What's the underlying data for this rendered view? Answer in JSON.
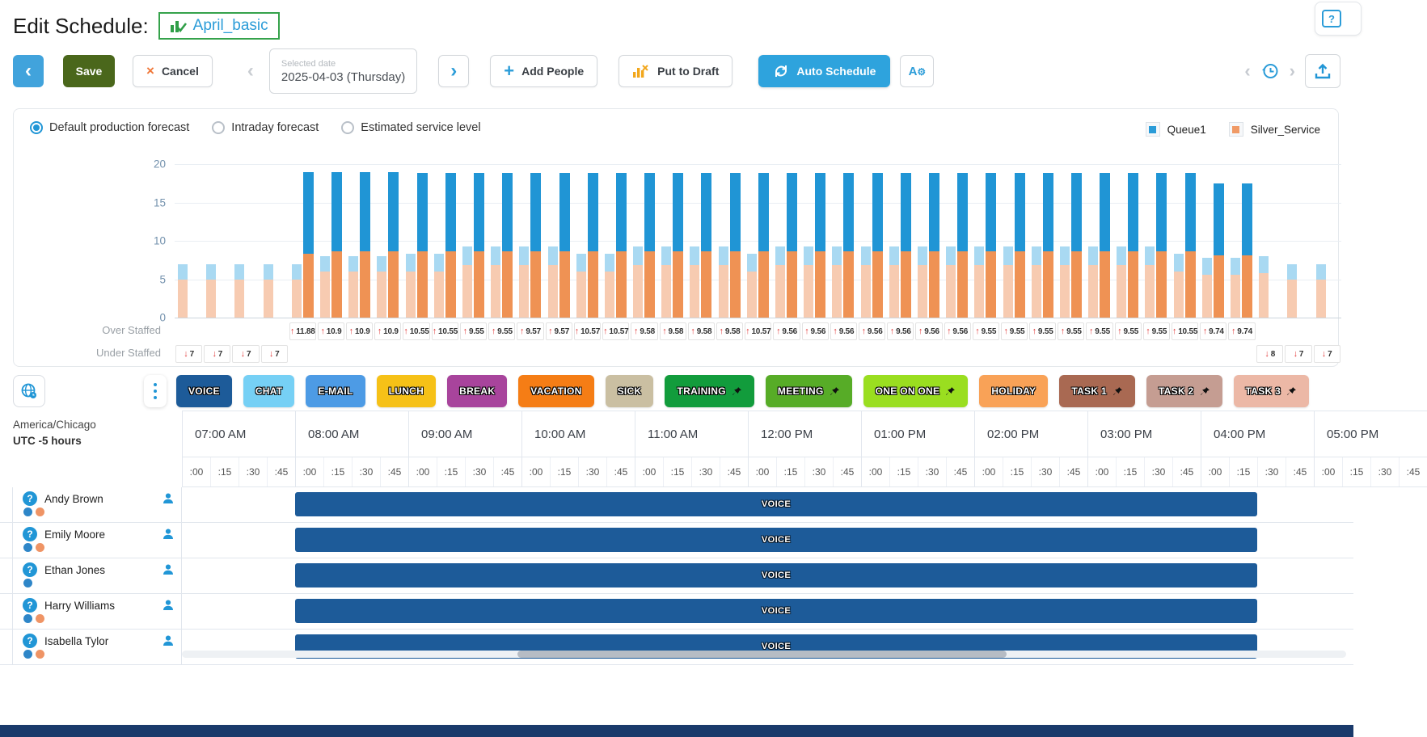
{
  "header": {
    "title": "Edit Schedule:",
    "schedule_name": "April_basic",
    "help_icon": "?"
  },
  "toolbar": {
    "save_label": "Save",
    "cancel_label": "Cancel",
    "selected_date_label": "Selected date",
    "selected_date_value": "2025-04-03 (Thursday)",
    "add_people_label": "Add People",
    "put_to_draft_label": "Put to Draft",
    "auto_schedule_label": "Auto Schedule",
    "icons": {
      "back": "‹",
      "next": "›",
      "prev_disabled": "‹",
      "cancel_x": "×",
      "add_plus": "+",
      "history_prev": "‹",
      "history_next": "›",
      "agear_letter": "A",
      "agear_gear": "⚙"
    }
  },
  "forecast_panel": {
    "radios": [
      {
        "label": "Default production forecast",
        "selected": true
      },
      {
        "label": "Intraday forecast",
        "selected": false
      },
      {
        "label": "Estimated service level",
        "selected": false
      }
    ],
    "legend": [
      {
        "name": "Queue1",
        "color": "#2b9cd8"
      },
      {
        "name": "Silver_Service",
        "color": "#f09a66"
      }
    ],
    "over_staffed_label": "Over Staffed",
    "under_staffed_label": "Under Staffed"
  },
  "chart_data": {
    "type": "bar",
    "mode": "grouped-stacked: pale pair = forecast (Silver_Service bottom, Queue1 top), dark pair = scheduled",
    "interval_minutes": 15,
    "y_ticks": [
      0,
      5,
      10,
      15,
      20
    ],
    "ylim": [
      0,
      20
    ],
    "legend_position": "top-right",
    "series_colors": {
      "forecast_queue": "#a9d9f2",
      "forecast_silver": "#f7cbb1",
      "scheduled_queue": "#2095d5",
      "scheduled_silver": "#ef9254"
    },
    "intervals": [
      {
        "t": "07:00",
        "fq": 2,
        "fs": 5,
        "sq": 0,
        "ss": 0,
        "staffing": "under",
        "value": 7
      },
      {
        "t": "07:15",
        "fq": 2,
        "fs": 5,
        "sq": 0,
        "ss": 0,
        "staffing": "under",
        "value": 7
      },
      {
        "t": "07:30",
        "fq": 2,
        "fs": 5,
        "sq": 0,
        "ss": 0,
        "staffing": "under",
        "value": 7
      },
      {
        "t": "07:45",
        "fq": 2,
        "fs": 5,
        "sq": 0,
        "ss": 0,
        "staffing": "under",
        "value": 7
      },
      {
        "t": "08:00",
        "fq": 2,
        "fs": 5,
        "sq": 10.6,
        "ss": 8.3,
        "staffing": "over",
        "value": 11.88
      },
      {
        "t": "08:15",
        "fq": 2,
        "fs": 6,
        "sq": 10.3,
        "ss": 8.6,
        "staffing": "over",
        "value": 10.9
      },
      {
        "t": "08:30",
        "fq": 2,
        "fs": 6,
        "sq": 10.3,
        "ss": 8.6,
        "staffing": "over",
        "value": 10.9
      },
      {
        "t": "08:45",
        "fq": 2,
        "fs": 6,
        "sq": 10.3,
        "ss": 8.6,
        "staffing": "over",
        "value": 10.9
      },
      {
        "t": "09:00",
        "fq": 2.3,
        "fs": 6,
        "sq": 10.25,
        "ss": 8.6,
        "staffing": "over",
        "value": 10.55
      },
      {
        "t": "09:15",
        "fq": 2.3,
        "fs": 6,
        "sq": 10.25,
        "ss": 8.6,
        "staffing": "over",
        "value": 10.55
      },
      {
        "t": "09:30",
        "fq": 2.5,
        "fs": 6.8,
        "sq": 10.25,
        "ss": 8.6,
        "staffing": "over",
        "value": 9.55
      },
      {
        "t": "09:45",
        "fq": 2.5,
        "fs": 6.8,
        "sq": 10.25,
        "ss": 8.6,
        "staffing": "over",
        "value": 9.55
      },
      {
        "t": "10:00",
        "fq": 2.5,
        "fs": 6.8,
        "sq": 10.25,
        "ss": 8.6,
        "staffing": "over",
        "value": 9.57
      },
      {
        "t": "10:15",
        "fq": 2.5,
        "fs": 6.8,
        "sq": 10.25,
        "ss": 8.6,
        "staffing": "over",
        "value": 9.57
      },
      {
        "t": "10:30",
        "fq": 2.3,
        "fs": 6,
        "sq": 10.25,
        "ss": 8.6,
        "staffing": "over",
        "value": 10.57
      },
      {
        "t": "10:45",
        "fq": 2.3,
        "fs": 6,
        "sq": 10.25,
        "ss": 8.6,
        "staffing": "over",
        "value": 10.57
      },
      {
        "t": "11:00",
        "fq": 2.5,
        "fs": 6.8,
        "sq": 10.25,
        "ss": 8.6,
        "staffing": "over",
        "value": 9.58
      },
      {
        "t": "11:15",
        "fq": 2.5,
        "fs": 6.8,
        "sq": 10.25,
        "ss": 8.6,
        "staffing": "over",
        "value": 9.58
      },
      {
        "t": "11:30",
        "fq": 2.5,
        "fs": 6.8,
        "sq": 10.25,
        "ss": 8.6,
        "staffing": "over",
        "value": 9.58
      },
      {
        "t": "11:45",
        "fq": 2.5,
        "fs": 6.8,
        "sq": 10.25,
        "ss": 8.6,
        "staffing": "over",
        "value": 9.58
      },
      {
        "t": "12:00",
        "fq": 2.3,
        "fs": 6,
        "sq": 10.25,
        "ss": 8.6,
        "staffing": "over",
        "value": 10.57
      },
      {
        "t": "12:15",
        "fq": 2.5,
        "fs": 6.8,
        "sq": 10.25,
        "ss": 8.6,
        "staffing": "over",
        "value": 9.56
      },
      {
        "t": "12:30",
        "fq": 2.5,
        "fs": 6.8,
        "sq": 10.25,
        "ss": 8.6,
        "staffing": "over",
        "value": 9.56
      },
      {
        "t": "12:45",
        "fq": 2.5,
        "fs": 6.8,
        "sq": 10.25,
        "ss": 8.6,
        "staffing": "over",
        "value": 9.56
      },
      {
        "t": "13:00",
        "fq": 2.5,
        "fs": 6.8,
        "sq": 10.25,
        "ss": 8.6,
        "staffing": "over",
        "value": 9.56
      },
      {
        "t": "13:15",
        "fq": 2.5,
        "fs": 6.8,
        "sq": 10.25,
        "ss": 8.6,
        "staffing": "over",
        "value": 9.56
      },
      {
        "t": "13:30",
        "fq": 2.5,
        "fs": 6.8,
        "sq": 10.25,
        "ss": 8.6,
        "staffing": "over",
        "value": 9.56
      },
      {
        "t": "13:45",
        "fq": 2.5,
        "fs": 6.8,
        "sq": 10.25,
        "ss": 8.6,
        "staffing": "over",
        "value": 9.56
      },
      {
        "t": "14:00",
        "fq": 2.5,
        "fs": 6.8,
        "sq": 10.25,
        "ss": 8.6,
        "staffing": "over",
        "value": 9.55
      },
      {
        "t": "14:15",
        "fq": 2.5,
        "fs": 6.8,
        "sq": 10.25,
        "ss": 8.6,
        "staffing": "over",
        "value": 9.55
      },
      {
        "t": "14:30",
        "fq": 2.5,
        "fs": 6.8,
        "sq": 10.25,
        "ss": 8.6,
        "staffing": "over",
        "value": 9.55
      },
      {
        "t": "14:45",
        "fq": 2.5,
        "fs": 6.8,
        "sq": 10.25,
        "ss": 8.6,
        "staffing": "over",
        "value": 9.55
      },
      {
        "t": "15:00",
        "fq": 2.5,
        "fs": 6.8,
        "sq": 10.25,
        "ss": 8.6,
        "staffing": "over",
        "value": 9.55
      },
      {
        "t": "15:15",
        "fq": 2.5,
        "fs": 6.8,
        "sq": 10.25,
        "ss": 8.6,
        "staffing": "over",
        "value": 9.55
      },
      {
        "t": "15:30",
        "fq": 2.5,
        "fs": 6.8,
        "sq": 10.25,
        "ss": 8.6,
        "staffing": "over",
        "value": 9.55
      },
      {
        "t": "15:45",
        "fq": 2.3,
        "fs": 6,
        "sq": 10.25,
        "ss": 8.6,
        "staffing": "over",
        "value": 10.55
      },
      {
        "t": "16:00",
        "fq": 2.2,
        "fs": 5.6,
        "sq": 9.4,
        "ss": 8.1,
        "staffing": "over",
        "value": 9.74
      },
      {
        "t": "16:15",
        "fq": 2.2,
        "fs": 5.6,
        "sq": 9.4,
        "ss": 8.1,
        "staffing": "over",
        "value": 9.74
      },
      {
        "t": "16:30",
        "fq": 2.2,
        "fs": 5.8,
        "sq": 0,
        "ss": 0,
        "staffing": "under",
        "value": 8
      },
      {
        "t": "16:45",
        "fq": 2,
        "fs": 5,
        "sq": 0,
        "ss": 0,
        "staffing": "under",
        "value": 7
      },
      {
        "t": "17:00",
        "fq": 2,
        "fs": 5,
        "sq": 0,
        "ss": 0,
        "staffing": "under",
        "value": 7
      }
    ]
  },
  "activity_bar": {
    "chips": [
      {
        "label": "VOICE",
        "color": "#1d5b99",
        "pinned": false
      },
      {
        "label": "CHAT",
        "color": "#76d0f5",
        "pinned": false
      },
      {
        "label": "E-MAIL",
        "color": "#4d9be5",
        "pinned": false
      },
      {
        "label": "LUNCH",
        "color": "#f6c117",
        "pinned": false
      },
      {
        "label": "BREAK",
        "color": "#a8449c",
        "pinned": false
      },
      {
        "label": "VACATION",
        "color": "#f57d15",
        "pinned": false
      },
      {
        "label": "SICK",
        "color": "#cabfa2",
        "pinned": false
      },
      {
        "label": "TRAINING",
        "color": "#129c3c",
        "pinned": true
      },
      {
        "label": "MEETING",
        "color": "#57ac27",
        "pinned": true
      },
      {
        "label": "ONE ON ONE",
        "color": "#9ade20",
        "pinned": true
      },
      {
        "label": "HOLIDAY",
        "color": "#f9a257",
        "pinned": false
      },
      {
        "label": "TASK 1",
        "color": "#a96952",
        "pinned": true
      },
      {
        "label": "TASK 2",
        "color": "#c59d92",
        "pinned": true
      },
      {
        "label": "TASK 3",
        "color": "#ecb8a6",
        "pinned": true
      }
    ]
  },
  "timezone": {
    "region": "America/Chicago",
    "offset": "UTC -5 hours"
  },
  "schedule_grid": {
    "hours": [
      "07:00 AM",
      "08:00 AM",
      "09:00 AM",
      "10:00 AM",
      "11:00 AM",
      "12:00 PM",
      "01:00 PM",
      "02:00 PM",
      "03:00 PM",
      "04:00 PM",
      "05:00 PM"
    ],
    "quarters": [
      ":00",
      ":15",
      ":30",
      ":45"
    ],
    "shift_color": "#1d5b99",
    "agents": [
      {
        "name": "Andy Brown",
        "status_dots": [
          "#2e86c8",
          "#ef9465"
        ],
        "shift": {
          "label": "VOICE",
          "start": "08:00 AM",
          "end": "04:30 PM"
        }
      },
      {
        "name": "Emily Moore",
        "status_dots": [
          "#2e86c8",
          "#ef9465"
        ],
        "shift": {
          "label": "VOICE",
          "start": "08:00 AM",
          "end": "04:30 PM"
        }
      },
      {
        "name": "Ethan Jones",
        "status_dots": [
          "#2e86c8"
        ],
        "shift": {
          "label": "VOICE",
          "start": "08:00 AM",
          "end": "04:30 PM"
        }
      },
      {
        "name": "Harry Williams",
        "status_dots": [
          "#2e86c8",
          "#ef9465"
        ],
        "shift": {
          "label": "VOICE",
          "start": "08:00 AM",
          "end": "04:30 PM"
        }
      },
      {
        "name": "Isabella Tylor",
        "status_dots": [
          "#2e86c8",
          "#ef9465"
        ],
        "shift": {
          "label": "VOICE",
          "start": "08:00 AM",
          "end": "04:30 PM"
        }
      }
    ]
  }
}
